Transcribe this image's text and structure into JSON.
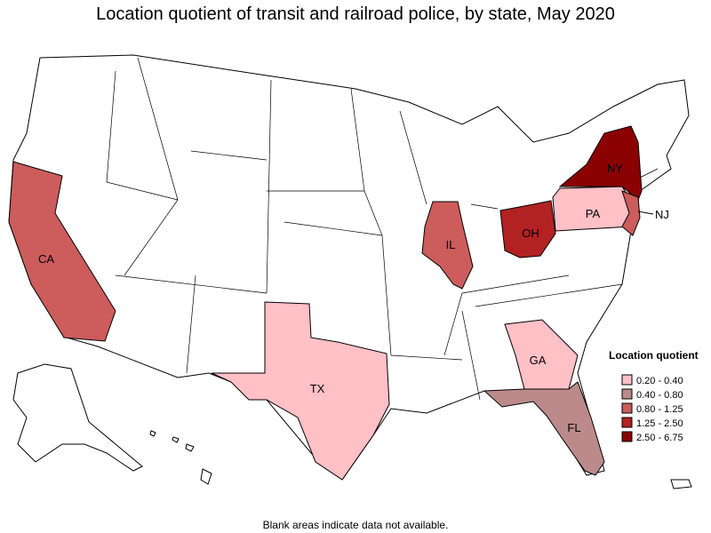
{
  "title": "Location quotient of transit and railroad police, by state, May 2020",
  "legend": {
    "title": "Location quotient",
    "items": [
      {
        "label": "0.20 - 0.40",
        "color": "#ffc0c6"
      },
      {
        "label": "0.40 - 0.80",
        "color": "#bc8a8a"
      },
      {
        "label": "0.80 - 1.25",
        "color": "#cd5c5c"
      },
      {
        "label": "1.25 - 2.50",
        "color": "#b22222"
      },
      {
        "label": "2.50 - 6.75",
        "color": "#8b0000"
      }
    ]
  },
  "states": [
    {
      "label": "CA",
      "color": "#cd5c5c"
    },
    {
      "label": "TX",
      "color": "#ffc0c6"
    },
    {
      "label": "IL",
      "color": "#cd5c5c"
    },
    {
      "label": "OH",
      "color": "#b22222"
    },
    {
      "label": "PA",
      "color": "#ffc0c6"
    },
    {
      "label": "NY",
      "color": "#8b0000"
    },
    {
      "label": "NJ",
      "color": "#cd5c5c"
    },
    {
      "label": "GA",
      "color": "#ffc0c6"
    },
    {
      "label": "FL",
      "color": "#bc8a8a"
    }
  ],
  "note": "Blank areas indicate data not available."
}
